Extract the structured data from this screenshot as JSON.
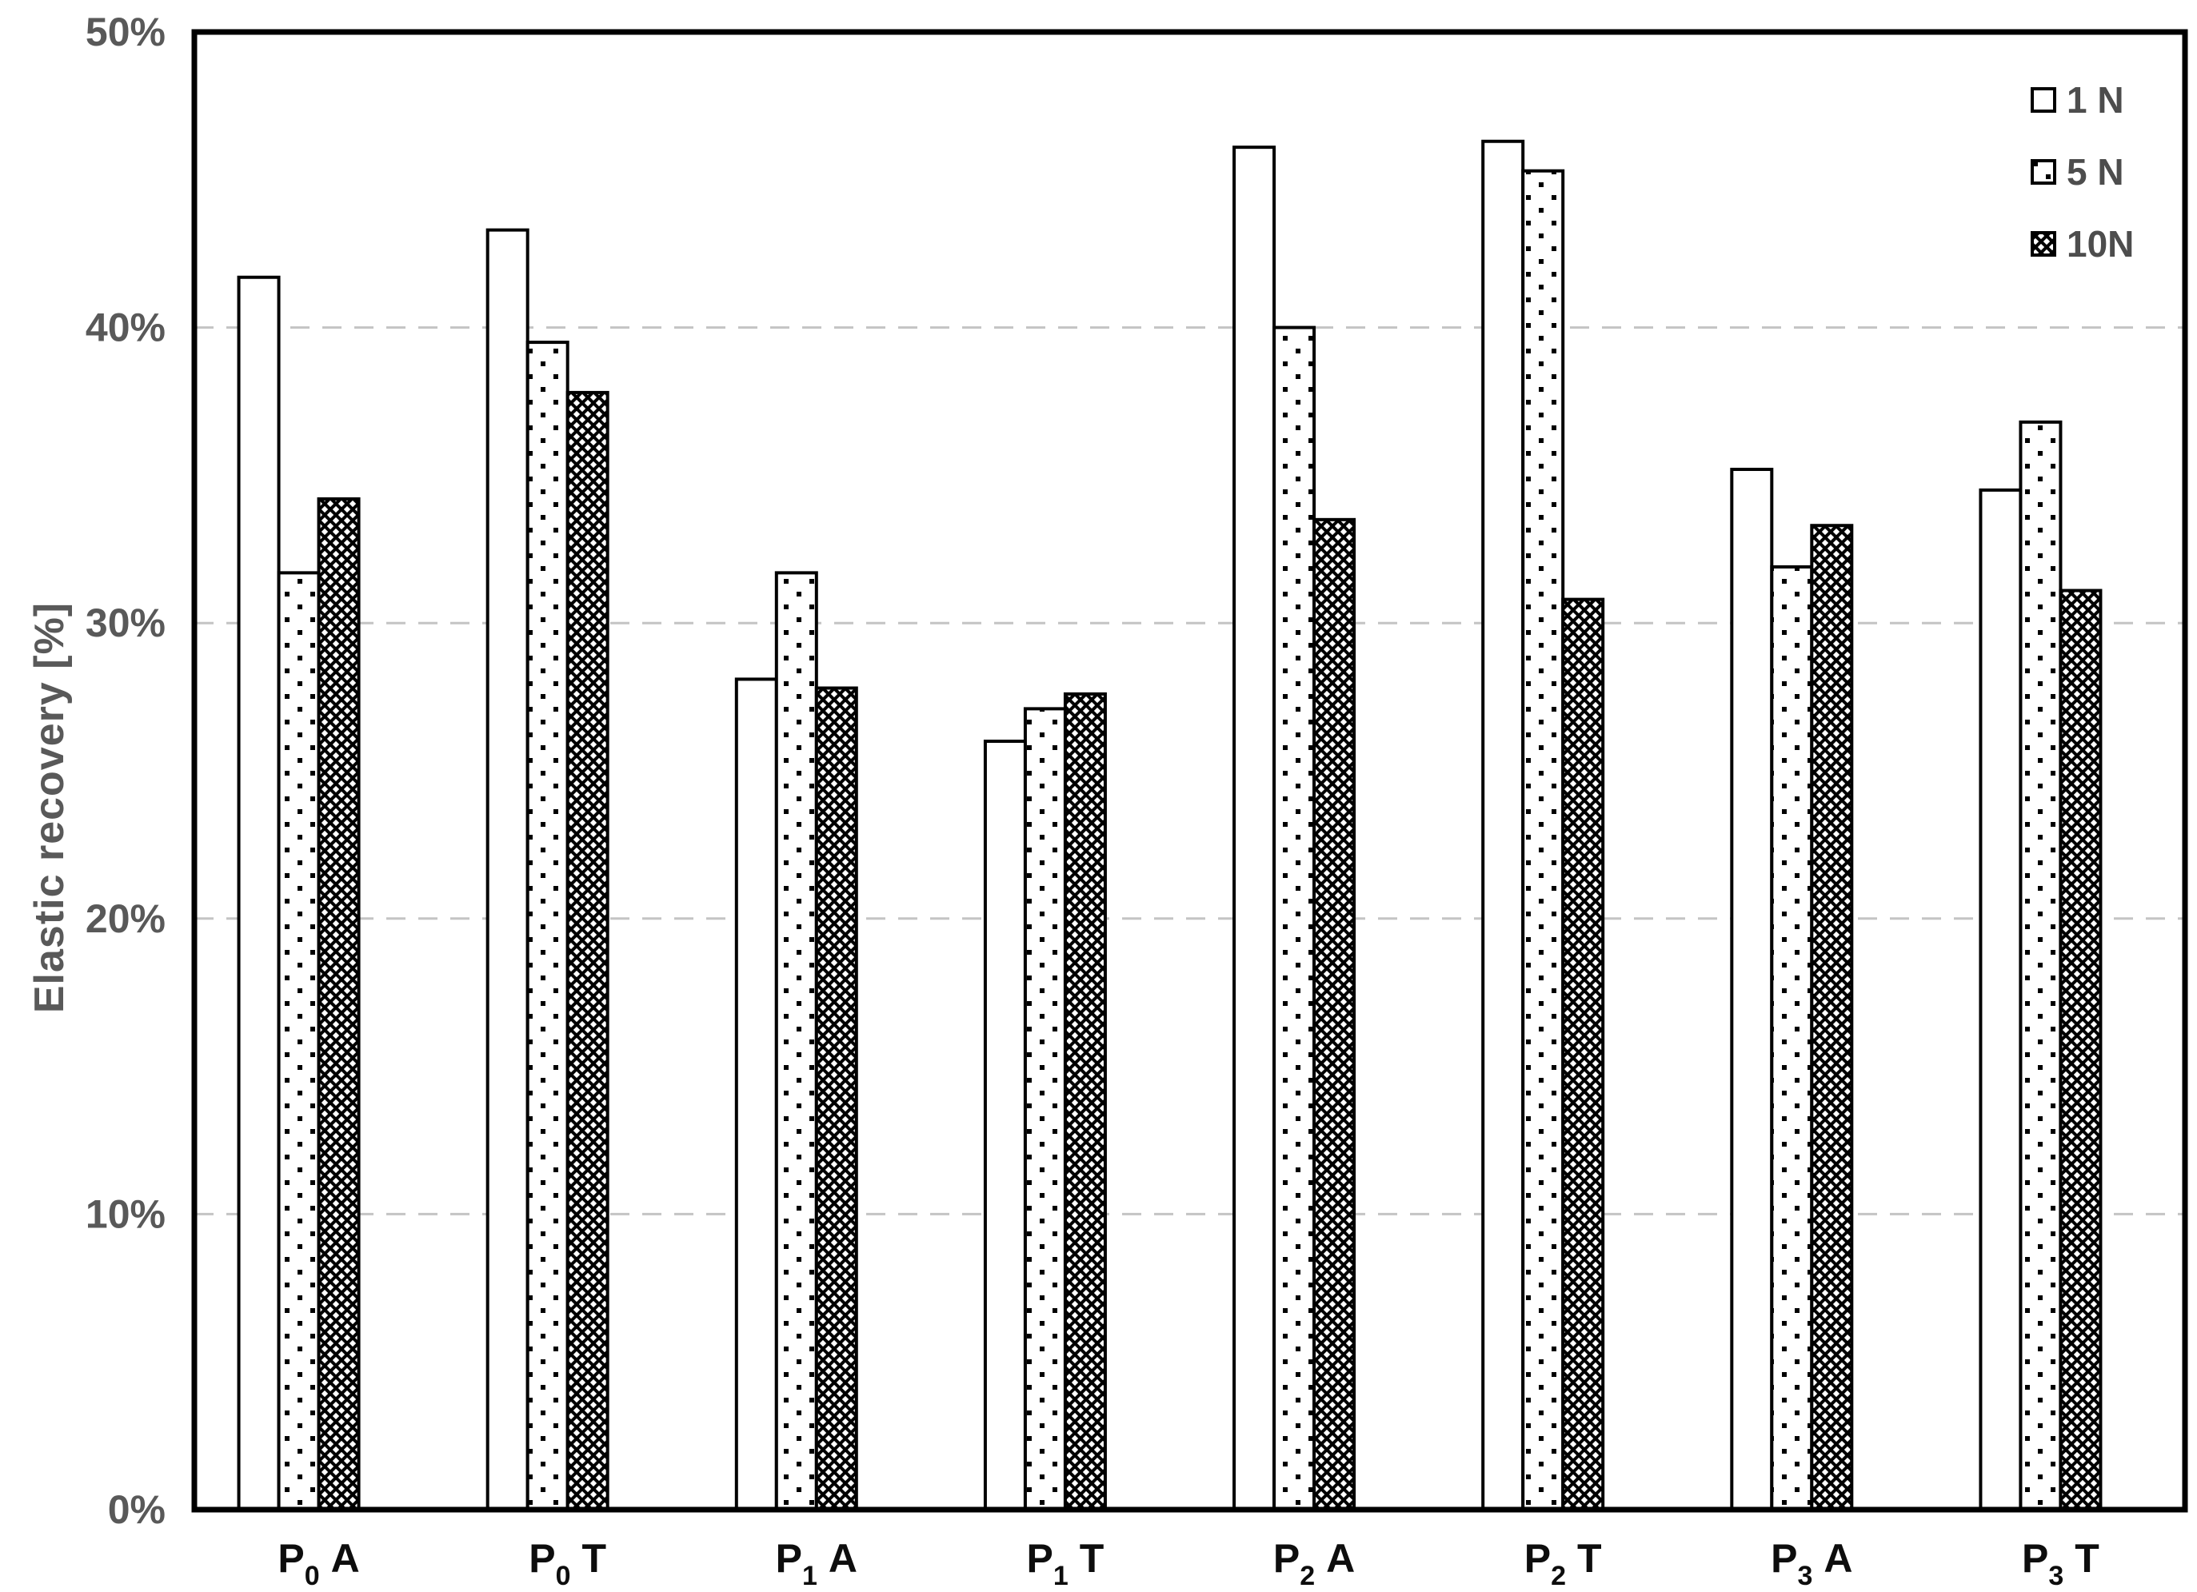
{
  "y_axis": {
    "title": "Elastic recovery [%]",
    "tick_labels": [
      "0%",
      "10%",
      "20%",
      "30%",
      "40%",
      "50%"
    ]
  },
  "legend": {
    "items": [
      {
        "label": "1 N",
        "pattern": "plain-white"
      },
      {
        "label": "5 N",
        "pattern": "dots"
      },
      {
        "label": "10N",
        "pattern": "crosshatch"
      }
    ]
  },
  "chart_data": {
    "type": "bar",
    "title": "",
    "xlabel": "",
    "ylabel": "Elastic recovery [%]",
    "ylim": [
      0,
      50
    ],
    "ytick_step": 10,
    "ytick_format": "percent",
    "grid": "horizontal-dashed-at-10-20-30-40",
    "legend_position": "top-right-inside",
    "categories": [
      "P0 A",
      "P0 T",
      "P1 A",
      "P1 T",
      "P2 A",
      "P2 T",
      "P3 A",
      "P3 T"
    ],
    "categories_rich": [
      {
        "base": "P",
        "sub": "0",
        "suffix": "A"
      },
      {
        "base": "P",
        "sub": "0",
        "suffix": "T"
      },
      {
        "base": "P",
        "sub": "1",
        "suffix": "A"
      },
      {
        "base": "P",
        "sub": "1",
        "suffix": "T"
      },
      {
        "base": "P",
        "sub": "2",
        "suffix": "A"
      },
      {
        "base": "P",
        "sub": "2",
        "suffix": "T"
      },
      {
        "base": "P",
        "sub": "3",
        "suffix": "A"
      },
      {
        "base": "P",
        "sub": "3",
        "suffix": "T"
      }
    ],
    "series": [
      {
        "name": "1 N",
        "pattern": "plain-white",
        "values": [
          41.7,
          43.3,
          28.1,
          26.0,
          46.1,
          46.3,
          35.2,
          34.5
        ]
      },
      {
        "name": "5 N",
        "pattern": "dots",
        "values": [
          31.7,
          39.5,
          31.7,
          27.1,
          40.0,
          45.3,
          31.9,
          36.8
        ]
      },
      {
        "name": "10N",
        "pattern": "crosshatch",
        "values": [
          34.2,
          37.8,
          27.8,
          27.6,
          33.5,
          30.8,
          33.3,
          31.1
        ]
      }
    ],
    "colors": {
      "bar_fill": "#ffffff",
      "bar_stroke": "#000000",
      "grid": "#c4c4c4",
      "tick_text": "#595959",
      "category_text": "#0d0d0d",
      "legend_text": "#4d4d4d",
      "axis_box": "#000000",
      "background": "#ffffff"
    }
  }
}
